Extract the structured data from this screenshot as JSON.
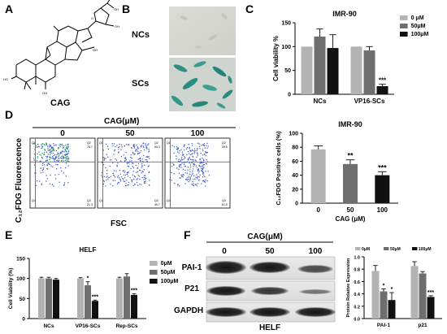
{
  "panels": {
    "A": {
      "letter": "A",
      "compound": "CAG"
    },
    "B": {
      "letter": "B",
      "row1": "NCs",
      "row2": "SCs"
    },
    "C": {
      "letter": "C"
    },
    "D": {
      "letter": "D",
      "header": "CAG(μM)",
      "doses": [
        "0",
        "50",
        "100"
      ],
      "ylabel": "C₁₂FDG Fluorescence",
      "xlabel": "FSC"
    },
    "E": {
      "letter": "E"
    },
    "F": {
      "letter": "F",
      "header": "CAG(μM)",
      "doses": [
        "0",
        "50",
        "100"
      ],
      "bands": [
        "PAI-1",
        "P21",
        "GAPDH"
      ],
      "footer": "HELF"
    }
  },
  "colors": {
    "light": "#b3b3b3",
    "mid": "#6e6e6e",
    "dark": "#111111",
    "gate": "#555555"
  },
  "chart_data": [
    {
      "id": "C-top",
      "type": "bar",
      "title": "IMR-90",
      "ylabel": "Cell viability %",
      "ylim": [
        0,
        150
      ],
      "yticks": [
        "0",
        "50",
        "100",
        "150"
      ],
      "categories": [
        "NCs",
        "VP16-SCs"
      ],
      "series": [
        {
          "name": "0 μM",
          "color": "#b3b3b3",
          "values": [
            100,
            100
          ],
          "errors": [
            0,
            0
          ],
          "sig": [
            "",
            ""
          ]
        },
        {
          "name": "50μM",
          "color": "#6e6e6e",
          "values": [
            121,
            92
          ],
          "errors": [
            16,
            8
          ],
          "sig": [
            "",
            ""
          ]
        },
        {
          "name": "100μM",
          "color": "#111111",
          "values": [
            97,
            17
          ],
          "errors": [
            28,
            4
          ],
          "sig": [
            "",
            "***"
          ]
        }
      ]
    },
    {
      "id": "D-right",
      "type": "bar",
      "title": "IMR-90",
      "ylabel": "C₁₂FDG  Positive cells (%)",
      "xlabel": "CAG (μM)",
      "ylim": [
        0,
        100
      ],
      "yticks": [
        "0",
        "20",
        "40",
        "60",
        "80",
        "100"
      ],
      "categories": [
        "0",
        "50",
        "100"
      ],
      "values": [
        77,
        56,
        40
      ],
      "errors": [
        5,
        6,
        5
      ],
      "sig": [
        "",
        "**",
        "***"
      ],
      "colors": [
        "#b3b3b3",
        "#6e6e6e",
        "#111111"
      ]
    },
    {
      "id": "E",
      "type": "bar",
      "title": "HELF",
      "ylabel": "Cell Viability (%)",
      "ylim": [
        0,
        150
      ],
      "yticks": [
        "0",
        "50",
        "100",
        "150"
      ],
      "categories": [
        "NCs",
        "VP16-SCs",
        "Rep-SCs"
      ],
      "series": [
        {
          "name": "0μM",
          "color": "#b3b3b3",
          "values": [
            100,
            100,
            100
          ],
          "errors": [
            3,
            2,
            3
          ],
          "sig": [
            "",
            "",
            ""
          ]
        },
        {
          "name": "50μM",
          "color": "#6e6e6e",
          "values": [
            100,
            83,
            105
          ],
          "errors": [
            3,
            9,
            7
          ],
          "sig": [
            "",
            "*",
            ""
          ]
        },
        {
          "name": "100μM",
          "color": "#111111",
          "values": [
            97,
            44,
            59
          ],
          "errors": [
            3,
            2,
            3
          ],
          "sig": [
            "",
            "***",
            "***"
          ]
        }
      ]
    },
    {
      "id": "F-right",
      "type": "bar",
      "ylabel": "Protein Relative Expression",
      "ylim": [
        0,
        1.0
      ],
      "yticks": [
        "0.0",
        "0.2",
        "0.4",
        "0.6",
        "0.8",
        "1.0"
      ],
      "categories": [
        "PAI-1",
        "p21"
      ],
      "series": [
        {
          "name": "0μM",
          "color": "#b3b3b3",
          "values": [
            0.77,
            0.85
          ],
          "errors": [
            0.09,
            0.07
          ],
          "sig": [
            "",
            ""
          ]
        },
        {
          "name": "50μM",
          "color": "#6e6e6e",
          "values": [
            0.44,
            0.73
          ],
          "errors": [
            0.04,
            0.03
          ],
          "sig": [
            "*",
            ""
          ]
        },
        {
          "name": "100μM",
          "color": "#111111",
          "values": [
            0.3,
            0.35
          ],
          "errors": [
            0.12,
            0.02
          ],
          "sig": [
            "*",
            "***"
          ]
        }
      ]
    },
    {
      "id": "D-flow",
      "type": "scatter",
      "panels": [
        {
          "dose": "0",
          "q1": "0.1",
          "q2": "78.7",
          "q3": "21.3",
          "q4": "0"
        },
        {
          "dose": "50",
          "q1": "0",
          "q2": "50.3",
          "q3": "49.7",
          "q4": "0"
        },
        {
          "dose": "100",
          "q1": "0",
          "q2": "39.0",
          "q3": "61.0",
          "q4": "0"
        }
      ]
    }
  ]
}
